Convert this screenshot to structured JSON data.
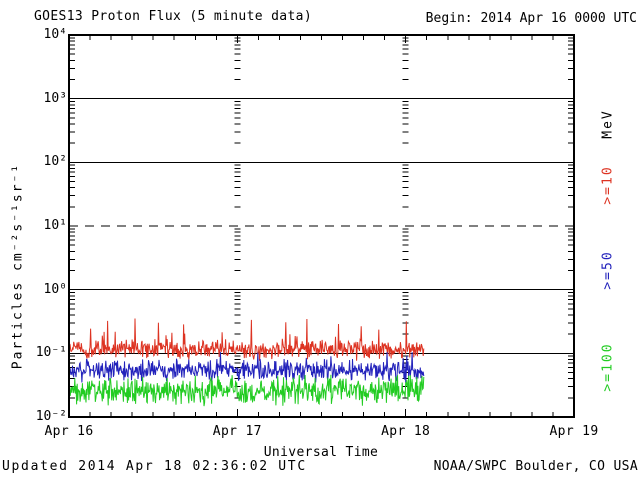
{
  "title": "GOES13 Proton Flux (5 minute data)",
  "begin_label": "Begin: 2014 Apr 16 0000 UTC",
  "footer": {
    "updated": "Updated 2014 Apr 18 02:36:02 UTC",
    "source": "NOAA/SWPC Boulder, CO USA"
  },
  "chart_data": {
    "type": "line",
    "title": "GOES13 Proton Flux (5 minute data)",
    "xlabel": "Universal Time",
    "ylabel": "Particles cm⁻²s⁻¹sr⁻¹",
    "y_scale": "log10",
    "ylim": [
      0.01,
      10000
    ],
    "y_tick_labels": [
      "10⁴",
      "10³",
      "10²",
      "10¹",
      "10⁰",
      "10⁻¹",
      "10⁻²"
    ],
    "y_tick_exponents": [
      4,
      3,
      2,
      1,
      0,
      -1,
      -2
    ],
    "grid_solid_decades": [
      3,
      2,
      0,
      -1
    ],
    "grid_dashed_decades": [
      1
    ],
    "x_tick_labels": [
      "Apr 16",
      "Apr 17",
      "Apr 18",
      "Apr 19"
    ],
    "x_span_days": 3,
    "x_minor_tick_hours": 3,
    "begin": "2014 Apr 16 0000 UTC",
    "cadence_minutes": 5,
    "data_duration_minutes": 3035,
    "legend_title": "MeV",
    "series": [
      {
        "name": ">=10",
        "color": "#dd3322",
        "median_flux": 0.115,
        "typical_range": [
          0.07,
          0.25
        ],
        "peak": 0.45,
        "log10_center": -0.94,
        "log10_spread": 0.18,
        "log10_min": -1.15,
        "log10_max": -0.35,
        "spike_prob": 0.05,
        "spike_add": 0.45
      },
      {
        "name": ">=50",
        "color": "#2222bb",
        "median_flux": 0.054,
        "typical_range": [
          0.03,
          0.09
        ],
        "peak": 0.105,
        "log10_center": -1.27,
        "log10_spread": 0.2,
        "log10_min": -1.52,
        "log10_max": -0.98,
        "spike_prob": 0.03,
        "spike_add": 0.3
      },
      {
        "name": ">=100",
        "color": "#22cc22",
        "median_flux": 0.026,
        "typical_range": [
          0.013,
          0.047
        ],
        "peak": 0.05,
        "log10_center": -1.59,
        "log10_spread": 0.26,
        "log10_min": -1.93,
        "log10_max": -1.3,
        "spike_prob": 0.03,
        "spike_add": 0.25
      }
    ],
    "noise_seed": 20140418
  }
}
